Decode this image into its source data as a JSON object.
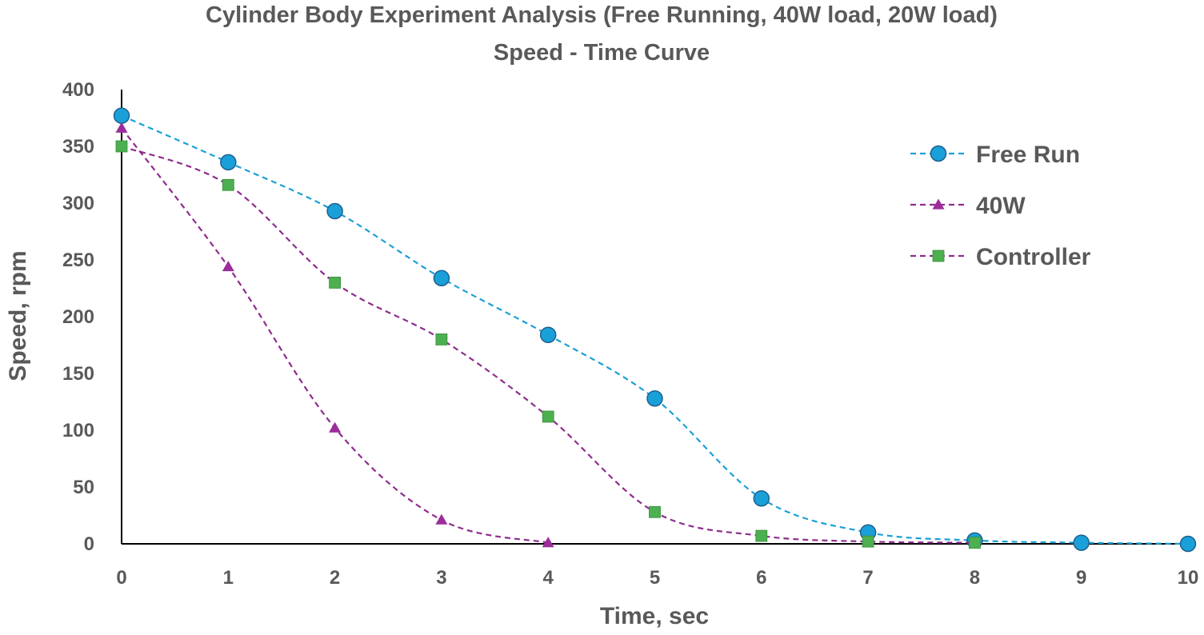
{
  "chart_data": {
    "type": "line",
    "title": "Cylinder Body Experiment Analysis (Free Running, 40W load, 20W load)",
    "subtitle": "Speed - Time Curve",
    "xlabel": "Time, sec",
    "ylabel": "Speed, rpm",
    "xlim": [
      0,
      10
    ],
    "ylim": [
      0,
      400
    ],
    "x_ticks": [
      0,
      1,
      2,
      3,
      4,
      5,
      6,
      7,
      8,
      9,
      10
    ],
    "y_ticks": [
      0,
      50,
      100,
      150,
      200,
      250,
      300,
      350,
      400
    ],
    "grid": false,
    "legend_position": "top-right",
    "series": [
      {
        "name": "Free Run",
        "marker": "circle",
        "line_style": "dashed",
        "line_color": "#1aa0d8",
        "marker_color": "#1aa0d8",
        "x": [
          0,
          1,
          2,
          3,
          4,
          5,
          6,
          7,
          8,
          9,
          10
        ],
        "values": [
          377,
          336,
          293,
          234,
          184,
          128,
          40,
          10,
          3,
          1,
          0
        ]
      },
      {
        "name": "40W",
        "marker": "triangle",
        "line_style": "dashed",
        "line_color": "#8e2c8e",
        "marker_color": "#9b2d9b",
        "x": [
          0,
          1,
          2,
          3,
          4
        ],
        "values": [
          366,
          244,
          102,
          21,
          1
        ]
      },
      {
        "name": "Controller",
        "marker": "square",
        "line_style": "dashed",
        "line_color": "#8e2c8e",
        "marker_color": "#4caf50",
        "x": [
          0,
          1,
          2,
          3,
          4,
          5,
          6,
          7,
          8
        ],
        "values": [
          350,
          316,
          230,
          180,
          112,
          28,
          7,
          2,
          1
        ]
      }
    ]
  }
}
